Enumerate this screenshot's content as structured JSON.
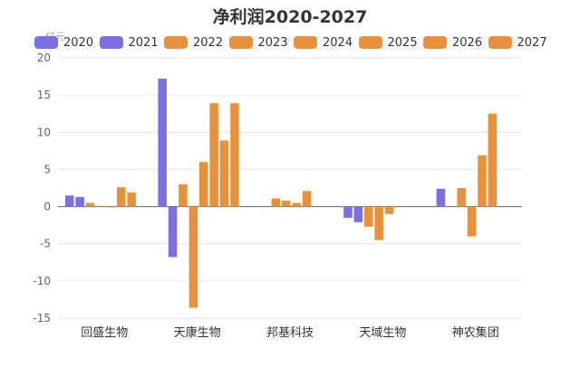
{
  "chart_data": {
    "type": "bar",
    "title": "净利润2020-2027",
    "ylabel": "亿元",
    "xlabel": "",
    "ylim": [
      -15,
      20
    ],
    "yticks": [
      20,
      15,
      10,
      5,
      0,
      -5,
      -10,
      -15
    ],
    "grid": true,
    "legend_position": "top",
    "categories": [
      "回盛生物",
      "天康生物",
      "邦基科技",
      "天域生物",
      "神农集团"
    ],
    "series": [
      {
        "name": "2020",
        "color": "#7b6fe6",
        "values": [
          1.5,
          17.2,
          null,
          -1.5,
          2.4
        ]
      },
      {
        "name": "2021",
        "color": "#7b6fe6",
        "values": [
          1.3,
          -6.8,
          null,
          -2.1,
          null
        ]
      },
      {
        "name": "2022",
        "color": "#e8913a",
        "values": [
          0.5,
          3.0,
          1.1,
          -2.7,
          2.5
        ]
      },
      {
        "name": "2023",
        "color": "#e8913a",
        "values": [
          0.1,
          -13.6,
          0.8,
          -4.5,
          -4.0
        ]
      },
      {
        "name": "2024",
        "color": "#e8913a",
        "values": [
          -0.1,
          6.0,
          0.5,
          -1.0,
          6.9
        ]
      },
      {
        "name": "2025",
        "color": "#e8913a",
        "values": [
          2.6,
          13.9,
          2.1,
          null,
          12.5
        ]
      },
      {
        "name": "2026",
        "color": "#e8913a",
        "values": [
          1.9,
          8.9,
          null,
          null,
          null
        ]
      },
      {
        "name": "2027",
        "color": "#e8913a",
        "values": [
          null,
          13.9,
          null,
          null,
          null
        ]
      }
    ]
  }
}
